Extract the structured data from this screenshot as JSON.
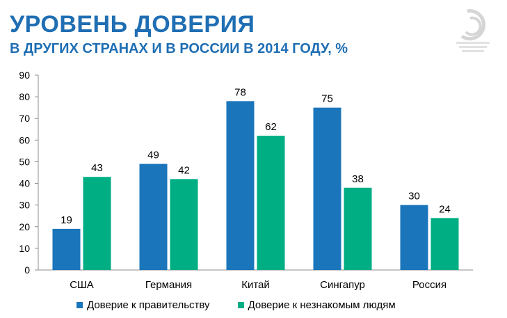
{
  "header": {
    "title": "УРОВЕНЬ ДОВЕРИЯ",
    "subtitle": "В ДРУГИХ СТРАНАХ И В РОССИИ В 2014 ГОДУ, %"
  },
  "logo": {
    "icon": "org-logo-icon"
  },
  "colors": {
    "government": "#1a75bb",
    "strangers": "#00ae84",
    "title": "#1f6eb3"
  },
  "chart_data": {
    "type": "bar",
    "title": "УРОВЕНЬ ДОВЕРИЯ",
    "subtitle": "В ДРУГИХ СТРАНАХ И В РОССИИ В 2014 ГОДУ, %",
    "categories": [
      "США",
      "Германия",
      "Китай",
      "Сингапур",
      "Россия"
    ],
    "series": [
      {
        "name": "Доверие к правительству",
        "values": [
          19,
          49,
          78,
          75,
          30
        ]
      },
      {
        "name": "Доверие к незнакомым людям",
        "values": [
          43,
          42,
          62,
          38,
          24
        ]
      }
    ],
    "xlabel": "",
    "ylabel": "",
    "ylim": [
      0,
      90
    ],
    "yticks": [
      0,
      10,
      20,
      30,
      40,
      50,
      60,
      70,
      80,
      90
    ],
    "grid": false,
    "legend": "bottom"
  }
}
